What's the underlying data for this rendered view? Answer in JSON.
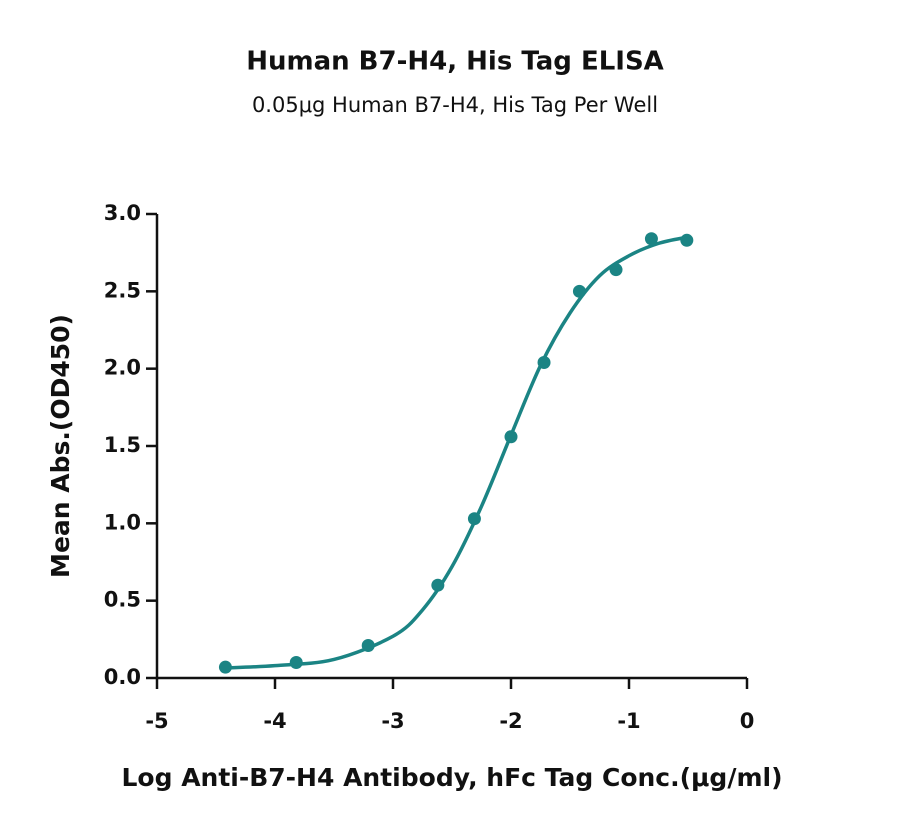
{
  "chart_data": {
    "type": "scatter",
    "title": "Human B7-H4, His Tag ELISA",
    "subtitle": "0.05μg Human B7-H4, His Tag Per Well",
    "x_label": "Log Anti-B7-H4 Antibody, hFc Tag Conc.(μg/ml)",
    "y_label": "Mean Abs.(OD450)",
    "color": "#1b8484",
    "xlim": [
      -5,
      0
    ],
    "xticks": [
      -5,
      -4,
      -3,
      -2,
      -1,
      0
    ],
    "ylim": [
      0,
      3
    ],
    "yticks": [
      {
        "value": 0,
        "label": "0.0"
      },
      0.5,
      {
        "value": 1,
        "label": "1.0"
      },
      1.5,
      {
        "value": 2,
        "label": "2.0"
      },
      2.5,
      {
        "value": 3,
        "label": "3.0"
      }
    ],
    "series": [
      {
        "x": [
          -4.42,
          -3.82,
          -3.21,
          -2.62,
          -2.31,
          -2.0,
          -1.72,
          -1.42,
          -1.11,
          -0.81,
          -0.51
        ],
        "values": [
          0.07,
          0.1,
          0.21,
          0.6,
          1.03,
          1.56,
          2.04,
          2.5,
          2.64,
          2.84,
          2.83
        ]
      }
    ],
    "curve": {
      "x": [
        -4.42,
        -4.0,
        -3.5,
        -3.0,
        -2.75,
        -2.5,
        -2.25,
        -2.0,
        -1.75,
        -1.5,
        -1.25,
        -1.0,
        -0.75,
        -0.51
      ],
      "values": [
        0.065,
        0.08,
        0.12,
        0.27,
        0.44,
        0.72,
        1.11,
        1.57,
        2.02,
        2.36,
        2.6,
        2.73,
        2.81,
        2.85
      ]
    }
  }
}
